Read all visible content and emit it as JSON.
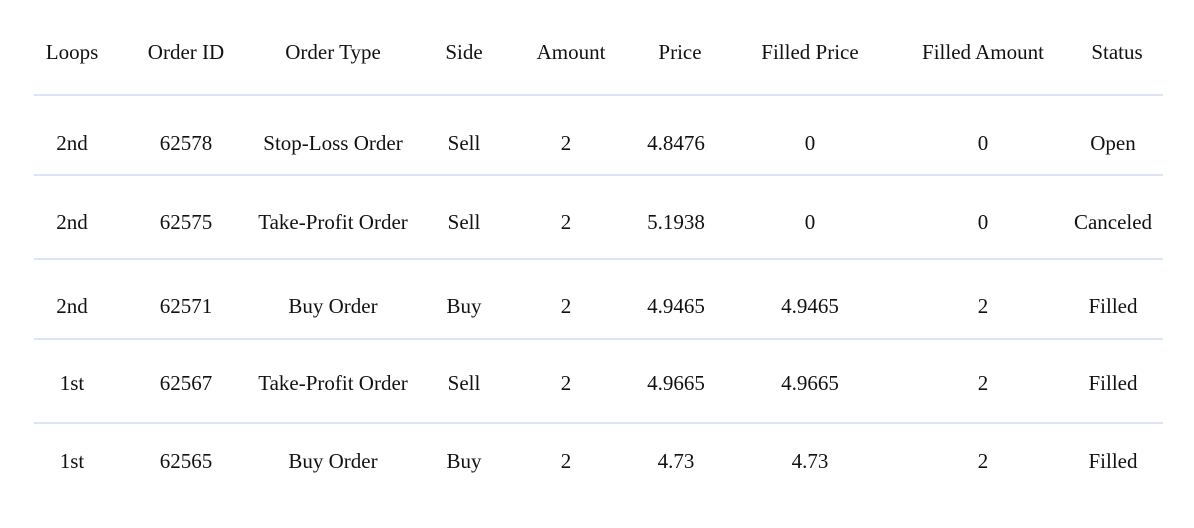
{
  "table": {
    "headers": [
      "Loops",
      "Order ID",
      "Order Type",
      "Side",
      "Amount",
      "Price",
      "Filled Price",
      "Filled Amount",
      "Status"
    ],
    "rows": [
      [
        "2nd",
        "62578",
        "Stop-Loss Order",
        "Sell",
        "2",
        "4.8476",
        "0",
        "0",
        "Open"
      ],
      [
        "2nd",
        "62575",
        "Take-Profit Order",
        "Sell",
        "2",
        "5.1938",
        "0",
        "0",
        "Canceled"
      ],
      [
        "2nd",
        "62571",
        "Buy Order",
        "Buy",
        "2",
        "4.9465",
        "4.9465",
        "2",
        "Filled"
      ],
      [
        "1st",
        "62567",
        "Take-Profit Order",
        "Sell",
        "2",
        "4.9665",
        "4.9665",
        "2",
        "Filled"
      ],
      [
        "1st",
        "62565",
        "Buy Order",
        "Buy",
        "2",
        "4.73",
        "4.73",
        "2",
        "Filled"
      ]
    ]
  },
  "colors": {
    "divider": "#dde4fa",
    "text": "#111111"
  }
}
